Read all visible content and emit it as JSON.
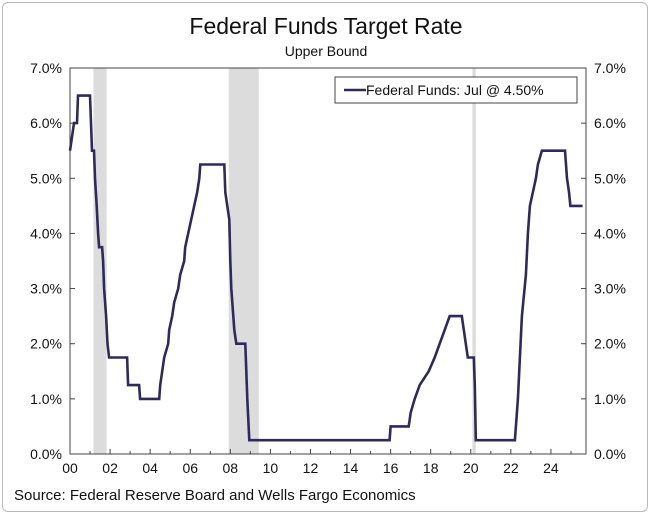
{
  "chart_data": {
    "type": "line",
    "title": "Federal Funds Target Rate",
    "subtitle": "Upper Bound",
    "source": "Source: Federal Reserve Board and Wells Fargo Economics",
    "xlabel": "",
    "ylabel": "",
    "xlim": [
      2000,
      2025.75
    ],
    "ylim": [
      0,
      7
    ],
    "x_ticks": [
      {
        "value": 2000,
        "label": "00"
      },
      {
        "value": 2002,
        "label": "02"
      },
      {
        "value": 2004,
        "label": "04"
      },
      {
        "value": 2006,
        "label": "06"
      },
      {
        "value": 2008,
        "label": "08"
      },
      {
        "value": 2010,
        "label": "10"
      },
      {
        "value": 2012,
        "label": "12"
      },
      {
        "value": 2014,
        "label": "14"
      },
      {
        "value": 2016,
        "label": "16"
      },
      {
        "value": 2018,
        "label": "18"
      },
      {
        "value": 2020,
        "label": "20"
      },
      {
        "value": 2022,
        "label": "22"
      },
      {
        "value": 2024,
        "label": "24"
      }
    ],
    "y_ticks": [
      {
        "value": 0,
        "label": "0.0%"
      },
      {
        "value": 1,
        "label": "1.0%"
      },
      {
        "value": 2,
        "label": "2.0%"
      },
      {
        "value": 3,
        "label": "3.0%"
      },
      {
        "value": 4,
        "label": "4.0%"
      },
      {
        "value": 5,
        "label": "5.0%"
      },
      {
        "value": 6,
        "label": "6.0%"
      },
      {
        "value": 7,
        "label": "7.0%"
      }
    ],
    "recessions": [
      {
        "start": 2001.17,
        "end": 2001.83
      },
      {
        "start": 2007.92,
        "end": 2009.42
      },
      {
        "start": 2020.08,
        "end": 2020.25
      }
    ],
    "legend": "Federal Funds: Jul @ 4.50%",
    "legend_position": "top-right",
    "colors": {
      "line": "#2e2a5c",
      "recession": "#dcdcdc",
      "axis": "#444444"
    },
    "series": [
      {
        "name": "Federal Funds",
        "points": [
          [
            2000.0,
            5.5
          ],
          [
            2000.1,
            5.75
          ],
          [
            2000.2,
            6.0
          ],
          [
            2000.35,
            6.0
          ],
          [
            2000.4,
            6.5
          ],
          [
            2001.0,
            6.5
          ],
          [
            2001.05,
            6.0
          ],
          [
            2001.1,
            5.5
          ],
          [
            2001.2,
            5.5
          ],
          [
            2001.25,
            5.0
          ],
          [
            2001.33,
            4.5
          ],
          [
            2001.4,
            4.0
          ],
          [
            2001.45,
            3.75
          ],
          [
            2001.6,
            3.75
          ],
          [
            2001.65,
            3.5
          ],
          [
            2001.7,
            3.0
          ],
          [
            2001.8,
            2.5
          ],
          [
            2001.87,
            2.0
          ],
          [
            2001.95,
            1.75
          ],
          [
            2002.85,
            1.75
          ],
          [
            2002.9,
            1.25
          ],
          [
            2003.45,
            1.25
          ],
          [
            2003.5,
            1.0
          ],
          [
            2004.45,
            1.0
          ],
          [
            2004.5,
            1.25
          ],
          [
            2004.6,
            1.5
          ],
          [
            2004.7,
            1.75
          ],
          [
            2004.9,
            2.0
          ],
          [
            2004.95,
            2.25
          ],
          [
            2005.1,
            2.5
          ],
          [
            2005.2,
            2.75
          ],
          [
            2005.4,
            3.0
          ],
          [
            2005.5,
            3.25
          ],
          [
            2005.7,
            3.5
          ],
          [
            2005.75,
            3.75
          ],
          [
            2005.9,
            4.0
          ],
          [
            2006.05,
            4.25
          ],
          [
            2006.2,
            4.5
          ],
          [
            2006.35,
            4.75
          ],
          [
            2006.45,
            5.0
          ],
          [
            2006.5,
            5.25
          ],
          [
            2007.7,
            5.25
          ],
          [
            2007.75,
            4.75
          ],
          [
            2007.85,
            4.5
          ],
          [
            2007.95,
            4.25
          ],
          [
            2008.0,
            3.5
          ],
          [
            2008.05,
            3.0
          ],
          [
            2008.2,
            2.25
          ],
          [
            2008.3,
            2.0
          ],
          [
            2008.75,
            2.0
          ],
          [
            2008.8,
            1.5
          ],
          [
            2008.85,
            1.0
          ],
          [
            2008.95,
            0.25
          ],
          [
            2015.95,
            0.25
          ],
          [
            2016.0,
            0.5
          ],
          [
            2016.9,
            0.5
          ],
          [
            2017.0,
            0.75
          ],
          [
            2017.2,
            1.0
          ],
          [
            2017.45,
            1.25
          ],
          [
            2017.9,
            1.5
          ],
          [
            2018.2,
            1.75
          ],
          [
            2018.45,
            2.0
          ],
          [
            2018.7,
            2.25
          ],
          [
            2018.95,
            2.5
          ],
          [
            2019.55,
            2.5
          ],
          [
            2019.65,
            2.25
          ],
          [
            2019.75,
            2.0
          ],
          [
            2019.85,
            1.75
          ],
          [
            2020.15,
            1.75
          ],
          [
            2020.2,
            1.25
          ],
          [
            2020.25,
            0.25
          ],
          [
            2022.2,
            0.25
          ],
          [
            2022.25,
            0.5
          ],
          [
            2022.35,
            1.0
          ],
          [
            2022.45,
            1.75
          ],
          [
            2022.55,
            2.5
          ],
          [
            2022.75,
            3.25
          ],
          [
            2022.85,
            4.0
          ],
          [
            2022.95,
            4.5
          ],
          [
            2023.1,
            4.75
          ],
          [
            2023.25,
            5.0
          ],
          [
            2023.35,
            5.25
          ],
          [
            2023.55,
            5.5
          ],
          [
            2024.7,
            5.5
          ],
          [
            2024.8,
            5.0
          ],
          [
            2024.9,
            4.75
          ],
          [
            2024.97,
            4.5
          ],
          [
            2025.58,
            4.5
          ]
        ]
      }
    ]
  }
}
